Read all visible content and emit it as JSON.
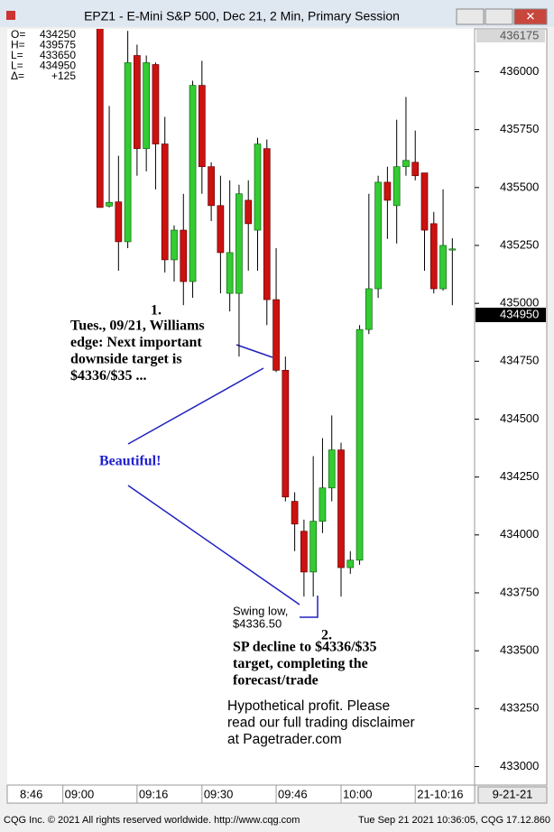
{
  "window_title": "EPZ1 - E-Mini S&P 500, Dec 21, 2 Min, Primary Session",
  "status_left": "CQG Inc. © 2021 All rights reserved worldwide. http://www.cqg.com",
  "status_right": "Tue Sep 21 2021 10:36:05, CQG 17.12.860",
  "date_box": "9-21-21",
  "info_box": [
    {
      "label": "O=",
      "value": 434250
    },
    {
      "label": "H=",
      "value": 439575
    },
    {
      "label": "L=",
      "value": 433650
    },
    {
      "label": "L=",
      "value": 434950
    },
    {
      "label": "Δ=",
      "value": "+125"
    }
  ],
  "annotations": {
    "n1": "1.",
    "note1": [
      "Tues., 09/21, Williams",
      "edge: Next important",
      "downside target is",
      "$4336/$35 ..."
    ],
    "beautiful": "Beautiful!",
    "swing": [
      "Swing low,",
      "$4336.50"
    ],
    "n2": "2.",
    "note2": [
      "SP decline to $4336/$35",
      "target, completing the",
      "forecast/trade"
    ],
    "disclaimer": [
      "Hypothetical profit. Please",
      "read our full trading disclaimer",
      "at Pagetrader.com"
    ]
  },
  "chart_data": {
    "type": "candlestick",
    "open": [
      436190,
      435420,
      435438,
      435266,
      436070,
      435668,
      436031,
      435688,
      435188,
      435316,
      435094,
      435941,
      435590,
      435422,
      435043,
      435043,
      435445,
      435316,
      435668,
      435016,
      434711,
      434145,
      434016,
      433840,
      434059,
      434203,
      434367,
      433859,
      433891,
      434887,
      435063,
      435523,
      435422,
      435590,
      435609,
      435563,
      435344,
      435063,
      435230
    ],
    "high": [
      436260,
      435852,
      435637,
      436176,
      436117,
      436070,
      436040,
      435805,
      435336,
      435473,
      435961,
      436047,
      435609,
      435551,
      435531,
      435512,
      435531,
      435715,
      435707,
      435238,
      434770,
      434184,
      434066,
      434340,
      434418,
      434516,
      434398,
      433930,
      434906,
      435473,
      435551,
      435590,
      435793,
      435891,
      435746,
      435563,
      435395,
      435492,
      435281
    ],
    "low": [
      435414,
      435414,
      435141,
      435238,
      435551,
      435570,
      435492,
      435133,
      435094,
      434992,
      435024,
      435473,
      435355,
      435043,
      434965,
      434770,
      435141,
      435141,
      434906,
      434703,
      434145,
      433930,
      433734,
      433734,
      434008,
      434145,
      433734,
      433832,
      433871,
      434867,
      435024,
      435278,
      435258,
      435551,
      435531,
      435141,
      435043,
      435055,
      434992
    ],
    "close": [
      435414,
      435436,
      435266,
      436039,
      435668,
      436039,
      435688,
      435188,
      435316,
      435094,
      435941,
      435590,
      435422,
      435219,
      435219,
      435473,
      435344,
      435688,
      435016,
      434711,
      434164,
      434047,
      433840,
      434059,
      434203,
      434367,
      433859,
      433891,
      434887,
      435063,
      435523,
      435445,
      435590,
      435617,
      435551,
      435316,
      435063,
      435250,
      435235
    ],
    "up_color": "#33cc33",
    "down_color": "#cc1111",
    "xlim": [
      -10,
      40.4
    ],
    "xticks": [
      {
        "value": -11,
        "label": "8:46"
      },
      {
        "value": -4,
        "label": "09:00"
      },
      {
        "value": 4,
        "label": "09:16"
      },
      {
        "value": 11,
        "label": "09:30"
      },
      {
        "value": 19,
        "label": "09:46"
      },
      {
        "value": 26,
        "label": "10:00"
      },
      {
        "value": 34,
        "label": "21-10:16"
      }
    ],
    "ylim": [
      432920,
      436185
    ],
    "yticks": [
      433000,
      433250,
      433500,
      433750,
      434000,
      434250,
      434500,
      434750,
      435000,
      435250,
      435500,
      435750,
      436000
    ],
    "axis_top_label": 436175,
    "last_price": 434950,
    "grid": false
  }
}
